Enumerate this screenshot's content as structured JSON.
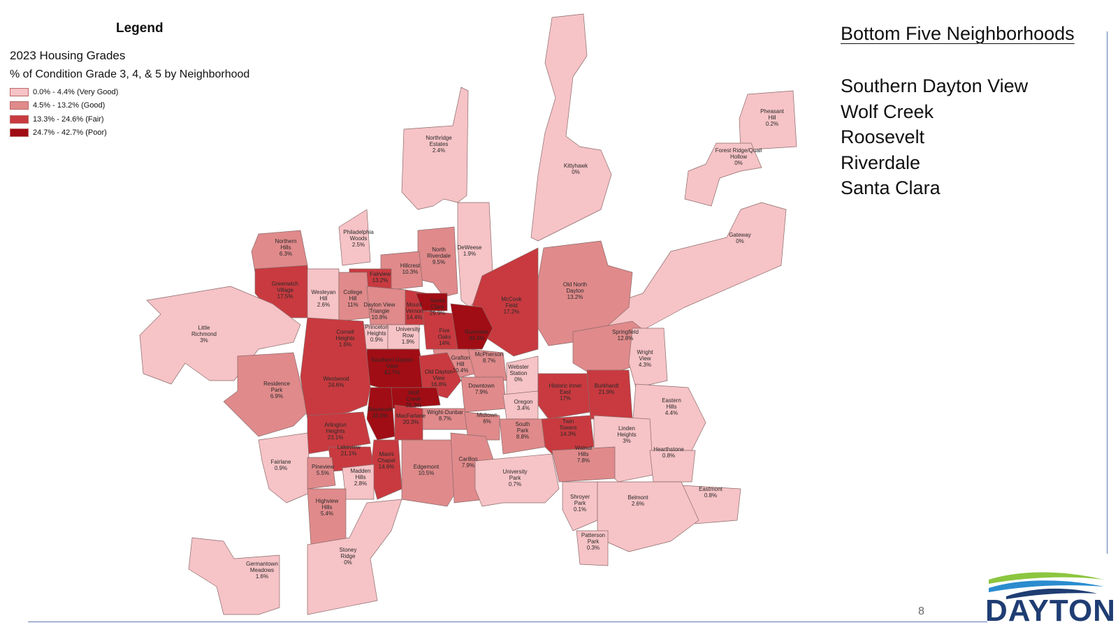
{
  "legend": {
    "title": "Legend",
    "subtitle": "2023 Housing Grades",
    "description": "% of Condition Grade 3, 4, & 5 by Neighborhood",
    "classes": [
      {
        "label": "0.0% - 4.4% (Very Good)",
        "color": "#f6c3c6"
      },
      {
        "label": "4.5% - 13.2% (Good)",
        "color": "#e08a8b"
      },
      {
        "label": "13.3% - 24.6% (Fair)",
        "color": "#c83a3f"
      },
      {
        "label": "24.7% - 42.7% (Poor)",
        "color": "#a00d14"
      }
    ]
  },
  "bottom_five": {
    "title": "Bottom Five Neighborhoods",
    "items": [
      "Southern Dayton View",
      "Wolf Creek",
      "Roosevelt",
      "Riverdale",
      "Santa Clara"
    ]
  },
  "page_number": "8",
  "logo": {
    "text": "DAYTON"
  },
  "neighborhoods": [
    {
      "name": "Northridge Estates",
      "value": "2.4%",
      "class": 0
    },
    {
      "name": "Kittyhawk",
      "value": "0%",
      "class": 0
    },
    {
      "name": "Pheasant Hill",
      "value": "0.2%",
      "class": 0
    },
    {
      "name": "Forest Ridge/Quail Hollow",
      "value": "0%",
      "class": 0
    },
    {
      "name": "Gateway",
      "value": "0%",
      "class": 0
    },
    {
      "name": "Philadelphia Woods",
      "value": "2.5%",
      "class": 0
    },
    {
      "name": "DeWeese",
      "value": "1.9%",
      "class": 0
    },
    {
      "name": "North Riverdale",
      "value": "9.5%",
      "class": 1
    },
    {
      "name": "Northern Hills",
      "value": "6.3%",
      "class": 1
    },
    {
      "name": "Hillcrest",
      "value": "10.3%",
      "class": 1
    },
    {
      "name": "Fairview",
      "value": "13.2%",
      "class": 2
    },
    {
      "name": "Old North Dayton",
      "value": "13.2%",
      "class": 1
    },
    {
      "name": "McCook Field",
      "value": "17.2%",
      "class": 2
    },
    {
      "name": "Greenwich Village",
      "value": "17.5%",
      "class": 2
    },
    {
      "name": "Wesleyan Hill",
      "value": "2.6%",
      "class": 0
    },
    {
      "name": "College Hill",
      "value": "11%",
      "class": 1
    },
    {
      "name": "Dayton View Triangle",
      "value": "10.8%",
      "class": 1
    },
    {
      "name": "Mount Vernon",
      "value": "14.4%",
      "class": 2
    },
    {
      "name": "Santa Clara",
      "value": "29.9%",
      "class": 3
    },
    {
      "name": "Little Richmond",
      "value": "3%",
      "class": 0
    },
    {
      "name": "Cornell Heights",
      "value": "1.6%",
      "class": 0
    },
    {
      "name": "Princeton Heights",
      "value": "0.9%",
      "class": 0
    },
    {
      "name": "University Row",
      "value": "1.9%",
      "class": 0
    },
    {
      "name": "Five Oaks",
      "value": "14%",
      "class": 2
    },
    {
      "name": "Riverdale",
      "value": "30.4%",
      "class": 3
    },
    {
      "name": "Springfield",
      "value": "12.8%",
      "class": 1
    },
    {
      "name": "Southern Dayton View",
      "value": "42.7%",
      "class": 3
    },
    {
      "name": "Grafton Hill",
      "value": "10.4%",
      "class": 1
    },
    {
      "name": "McPherson",
      "value": "8.7%",
      "class": 1
    },
    {
      "name": "Wright View",
      "value": "4.3%",
      "class": 0
    },
    {
      "name": "Residence Park",
      "value": "6.9%",
      "class": 1
    },
    {
      "name": "Westwood",
      "value": "24.6%",
      "class": 2
    },
    {
      "name": "Old Dayton View",
      "value": "16.8%",
      "class": 2
    },
    {
      "name": "Webster Station",
      "value": "0%",
      "class": 0
    },
    {
      "name": "Historic Inner East",
      "value": "17%",
      "class": 2
    },
    {
      "name": "Burkhardt",
      "value": "21.9%",
      "class": 2
    },
    {
      "name": "Wolf Creek",
      "value": "35.3%",
      "class": 3
    },
    {
      "name": "Downtown",
      "value": "7.9%",
      "class": 1
    },
    {
      "name": "Eastern Hills",
      "value": "4.4%",
      "class": 0
    },
    {
      "name": "Roosevelt",
      "value": "33.8%",
      "class": 3
    },
    {
      "name": "Wright-Dunbar",
      "value": "8.7%",
      "class": 1
    },
    {
      "name": "Oregon",
      "value": "3.4%",
      "class": 0
    },
    {
      "name": "MacFarlane",
      "value": "20.3%",
      "class": 2
    },
    {
      "name": "Arlington Heights",
      "value": "23.1%",
      "class": 2
    },
    {
      "name": "Midtown",
      "value": "6%",
      "class": 1
    },
    {
      "name": "Twin Towers",
      "value": "14.3%",
      "class": 2
    },
    {
      "name": "South Park",
      "value": "8.8%",
      "class": 1
    },
    {
      "name": "Linden Heights",
      "value": "3%",
      "class": 0
    },
    {
      "name": "Fairlane",
      "value": "0.9%",
      "class": 0
    },
    {
      "name": "Lakeview",
      "value": "21.1%",
      "class": 2
    },
    {
      "name": "Miami Chapel",
      "value": "14.6%",
      "class": 2
    },
    {
      "name": "Walnut Hills",
      "value": "7.8%",
      "class": 1
    },
    {
      "name": "Hearthstone",
      "value": "0.8%",
      "class": 0
    },
    {
      "name": "Pineview",
      "value": "5.5%",
      "class": 1
    },
    {
      "name": "Madden Hills",
      "value": "2.8%",
      "class": 0
    },
    {
      "name": "Edgemont",
      "value": "10.5%",
      "class": 1
    },
    {
      "name": "Carillon",
      "value": "7.9%",
      "class": 1
    },
    {
      "name": "University Park",
      "value": "0.7%",
      "class": 0
    },
    {
      "name": "Eastmont",
      "value": "0.8%",
      "class": 0
    },
    {
      "name": "Highview Hills",
      "value": "5.4%",
      "class": 1
    },
    {
      "name": "Shroyer Park",
      "value": "0.1%",
      "class": 0
    },
    {
      "name": "Belmont",
      "value": "2.6%",
      "class": 0
    },
    {
      "name": "Stoney Ridge",
      "value": "0%",
      "class": 0
    },
    {
      "name": "Patterson Park",
      "value": "0.3%",
      "class": 0
    },
    {
      "name": "Germantown Meadows",
      "value": "1.6%",
      "class": 0
    }
  ]
}
